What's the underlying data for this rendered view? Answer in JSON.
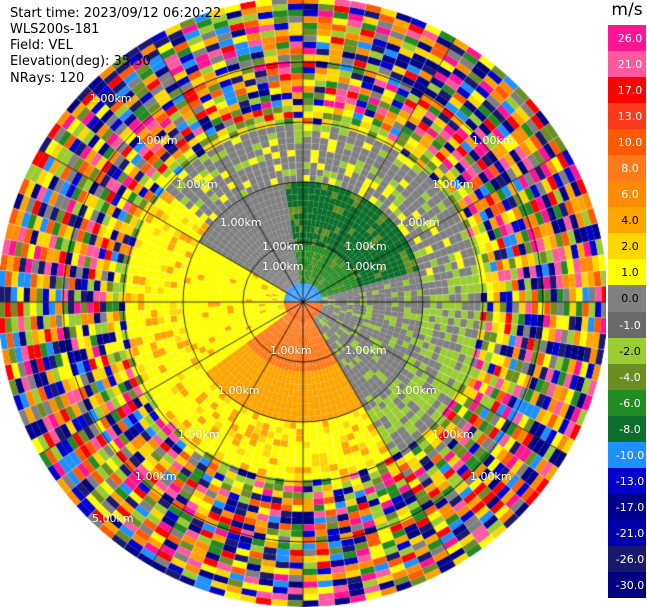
{
  "header": {
    "start_time": "Start time: 2023/09/12 06:20:22",
    "instrument": "WLS200s-181",
    "field": "Field: VEL",
    "elevation": "Elevation(deg): 35.30",
    "nrays": "NRays: 120"
  },
  "colorbar": {
    "unit": "m/s",
    "ticks": [
      "26.0",
      "21.0",
      "17.0",
      "13.0",
      "10.0",
      "8.0",
      "6.0",
      "4.0",
      "2.0",
      "1.0",
      "0.0",
      "-1.0",
      "-2.0",
      "-4.0",
      "-6.0",
      "-8.0",
      "-10.0",
      "-13.0",
      "-17.0",
      "-21.0",
      "-26.0",
      "-30.0"
    ],
    "colors": [
      "#ff1493",
      "#ff5aa0",
      "#ff0000",
      "#ff3a1a",
      "#ff5a00",
      "#ff7a1a",
      "#ff8c00",
      "#ffa500",
      "#ffd700",
      "#ffff00",
      "#808080",
      "#696969",
      "#9acd32",
      "#6b8e23",
      "#228b22",
      "#0b6e2a",
      "#1e90ff",
      "#0000cd",
      "#00008b",
      "#0000aa",
      "#191970",
      "#000080"
    ]
  },
  "range_labels": [
    "1.00km",
    "1.00km",
    "1.00km",
    "1.00km",
    "1.00km",
    "1.00km",
    "1.00km",
    "1.00km",
    "1.00km",
    "1.00km",
    "1.00km",
    "1.00km",
    "1.00km",
    "1.00km",
    "1.00km",
    "1.00km",
    "1.00km",
    "1.00km",
    "1.00km",
    "5.00km"
  ],
  "chart_data": {
    "type": "heatmap",
    "field": "VEL",
    "nrays": 120,
    "elevation_deg": 35.3,
    "colorbar_unit": "m/s",
    "value_range": [
      -30.0,
      26.0
    ]
  }
}
